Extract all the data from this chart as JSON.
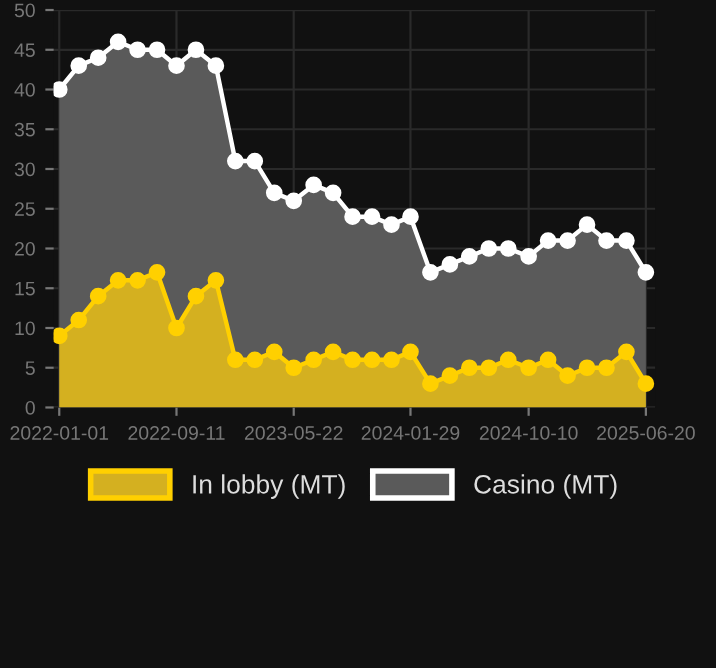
{
  "chart_data": {
    "type": "area",
    "x": [
      "2022-01-01",
      "2022-02-12",
      "2022-03-26",
      "2022-05-08",
      "2022-06-19",
      "2022-07-31",
      "2022-09-11",
      "2022-10-23",
      "2022-12-05",
      "2023-01-16",
      "2023-02-27",
      "2023-04-10",
      "2023-05-22",
      "2023-07-04",
      "2023-08-15",
      "2023-09-26",
      "2023-11-07",
      "2023-12-19",
      "2024-01-29",
      "2024-03-12",
      "2024-04-23",
      "2024-06-04",
      "2024-07-16",
      "2024-08-27",
      "2024-10-10",
      "2024-11-21",
      "2025-01-02",
      "2025-02-13",
      "2025-03-27",
      "2025-05-09",
      "2025-06-20"
    ],
    "series": [
      {
        "name": "Casino (MT)",
        "color": "#ffffff",
        "values": [
          40,
          43,
          44,
          46,
          45,
          45,
          43,
          45,
          43,
          31,
          31,
          27,
          26,
          28,
          27,
          24,
          24,
          23,
          24,
          17,
          18,
          19,
          20,
          20,
          19,
          21,
          21,
          23,
          21,
          21,
          17
        ]
      },
      {
        "name": "In lobby (MT)",
        "color": "#ffd000",
        "values": [
          9,
          11,
          14,
          16,
          16,
          17,
          10,
          14,
          16,
          6,
          6,
          7,
          5,
          6,
          7,
          6,
          6,
          6,
          7,
          3,
          4,
          5,
          5,
          6,
          5,
          6,
          4,
          5,
          5,
          7,
          3
        ]
      }
    ],
    "xlim": [
      "2021-12-20",
      "2025-07-10"
    ],
    "xticks": [
      "2022-01-01",
      "2022-09-11",
      "2023-05-22",
      "2024-01-29",
      "2024-10-10",
      "2025-06-20"
    ],
    "ylim": [
      0,
      50
    ],
    "yticks": [
      0,
      5,
      10,
      15,
      20,
      25,
      30,
      35,
      40,
      45,
      50
    ],
    "grid": true,
    "legend": "bottom",
    "marker": "circle",
    "line_style": "solid"
  }
}
